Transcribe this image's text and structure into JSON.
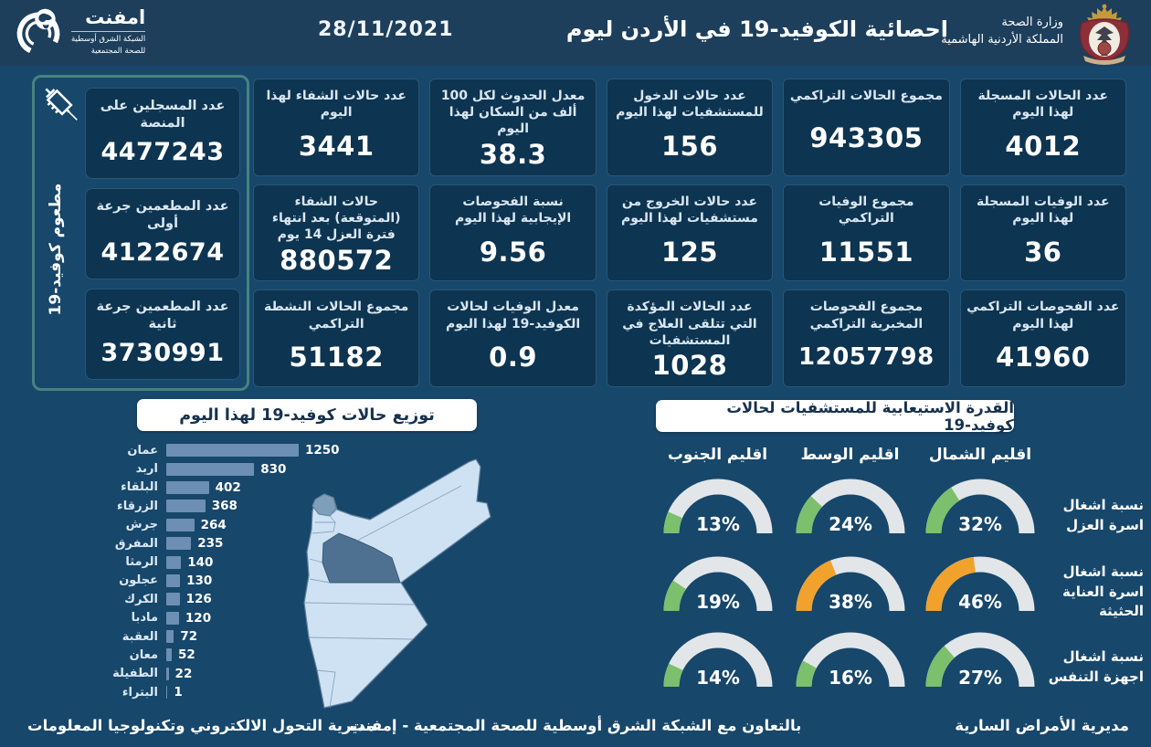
{
  "header": {
    "title": "احصائية الكوفيد-19 في الأردن ليوم",
    "date": "28/11/2021",
    "ministry_line1": "وزارة الصحة",
    "ministry_line2": "المملكة الأردنية الهاشمية",
    "emphnet_name": "امفنت",
    "emphnet_sub1": "الشبكة الشرق أوسطية",
    "emphnet_sub2": "للصحة المجتمعية"
  },
  "sidebar": {
    "vertical_label": "مطعوم كوفيد-19",
    "cards": [
      {
        "label": "عدد المسجلين على المنصة",
        "value": "4477243"
      },
      {
        "label": "عدد المطعمين جرعة أولى",
        "value": "4122674"
      },
      {
        "label": "عدد المطعمين جرعة ثانية",
        "value": "3730991"
      }
    ]
  },
  "stats": {
    "cards": [
      {
        "label": "عدد حالات الشفاء لهذا اليوم",
        "value": "3441"
      },
      {
        "label": "معدل الحدوث لكل 100 ألف من السكان لهذا اليوم",
        "value": "38.3"
      },
      {
        "label": "عدد حالات الدخول للمستشفيات لهذا اليوم",
        "value": "156"
      },
      {
        "label": "مجموع الحالات التراكمي",
        "value": "943305"
      },
      {
        "label": "عدد الحالات المسجلة لهذا اليوم",
        "value": "4012"
      },
      {
        "label": "حالات الشفاء (المتوقعة) بعد انتهاء فترة العزل 14 يوم",
        "value": "880572"
      },
      {
        "label": "نسبة الفحوصات الإيجابية لهذا اليوم",
        "value": "9.56"
      },
      {
        "label": "عدد حالات الخروج من مستشفيات لهذا اليوم",
        "value": "125"
      },
      {
        "label": "مجموع الوفيات التراكمي",
        "value": "11551"
      },
      {
        "label": "عدد الوفيات المسجلة لهذا اليوم",
        "value": "36"
      },
      {
        "label": "مجموع الحالات النشطة التراكمي",
        "value": "51182"
      },
      {
        "label": "معدل الوفيات لحالات الكوفيد-19 لهذا اليوم",
        "value": "0.9"
      },
      {
        "label": "عدد الحالات المؤكدة التي تتلقى العلاج في المستشفيات",
        "value": "1028"
      },
      {
        "label": "مجموع الفحوصات المخبرية التراكمي",
        "value": "12057798"
      },
      {
        "label": "عدد الفحوصات التراكمي لهذا اليوم",
        "value": "41960"
      }
    ]
  },
  "chart_data": [
    {
      "type": "bar",
      "orientation": "horizontal",
      "title": "توزيع حالات كوفيد-19 لهذا اليوم",
      "categories": [
        "عمان",
        "اربد",
        "البلقاء",
        "الزرقاء",
        "جرش",
        "المفرق",
        "الرمثا",
        "عجلون",
        "الكرك",
        "مادبا",
        "العقبة",
        "معان",
        "الطفيلة",
        "البتراء"
      ],
      "values": [
        1250,
        830,
        402,
        368,
        264,
        235,
        140,
        130,
        126,
        120,
        72,
        52,
        22,
        1
      ],
      "xlim": [
        0,
        1250
      ],
      "bar_color": "#6d8fb3"
    },
    {
      "type": "gauge-grid",
      "title": "القدرة الاستيعابية للمستشفيات لحالات كوفيد-19",
      "unit": "%",
      "range": [
        0,
        100
      ],
      "columns": [
        "اقليم الجنوب",
        "اقليم الوسط",
        "اقليم الشمال"
      ],
      "rows": [
        {
          "label": "نسبة اشغال اسرة العزل",
          "values": [
            13,
            24,
            32
          ],
          "colors": [
            "#7cbf6d",
            "#7cbf6d",
            "#7cbf6d"
          ]
        },
        {
          "label": "نسبة اشغال اسرة العناية الحثيثة",
          "values": [
            19,
            38,
            46
          ],
          "colors": [
            "#7cbf6d",
            "#f0a22d",
            "#f0a22d"
          ]
        },
        {
          "label": "نسبة اشغال اجهزة التنفس",
          "values": [
            14,
            16,
            27
          ],
          "colors": [
            "#7cbf6d",
            "#7cbf6d",
            "#7cbf6d"
          ]
        }
      ]
    }
  ],
  "footer": {
    "right": "مديرية الأمراض السارية",
    "center": "بالتعاون مع الشبكة الشرق أوسطية للصحة المجتمعية - إمفنت",
    "left": "مديرية التحول الالكتروني وتكنولوجيا المعلومات"
  },
  "colors": {
    "green": "#7cbf6d",
    "orange": "#f0a22d",
    "gauge_track": "#e3e6e8",
    "bar": "#6d8fb3",
    "accent_teal": "#478280",
    "card_bg": "#0d3450",
    "page_bg": "#17476b",
    "header_bg": "#1d3f5c"
  }
}
